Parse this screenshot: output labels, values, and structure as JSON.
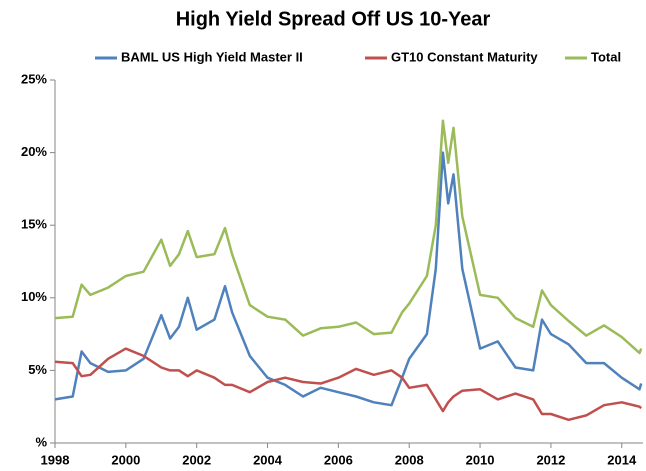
{
  "chart_data": {
    "type": "line",
    "title": "High Yield Spread Off US 10-Year",
    "x": [
      1998,
      1998.5,
      1998.75,
      1999,
      1999.5,
      2000,
      2000.5,
      2001,
      2001.25,
      2001.5,
      2001.75,
      2002,
      2002.5,
      2002.8,
      2003,
      2003.5,
      2004,
      2004.5,
      2005,
      2005.5,
      2006,
      2006.5,
      2007,
      2007.5,
      2007.8,
      2008,
      2008.5,
      2008.75,
      2008.95,
      2009.1,
      2009.25,
      2009.5,
      2010,
      2010.5,
      2011,
      2011.5,
      2011.75,
      2012,
      2012.5,
      2013,
      2013.5,
      2014,
      2014.5,
      2014.55
    ],
    "series": [
      {
        "name": "BAML US High Yield Master II",
        "color": "#4f81bd",
        "values": [
          3.0,
          3.2,
          6.3,
          5.5,
          4.9,
          5.0,
          5.8,
          8.8,
          7.2,
          8.0,
          10.0,
          7.8,
          8.5,
          10.8,
          9.0,
          6.0,
          4.5,
          4.0,
          3.2,
          3.8,
          3.5,
          3.2,
          2.8,
          2.6,
          4.5,
          5.8,
          7.5,
          12.0,
          20.0,
          16.5,
          18.5,
          12.0,
          6.5,
          7.0,
          5.2,
          5.0,
          8.5,
          7.5,
          6.8,
          5.5,
          5.5,
          4.5,
          3.7,
          4.1
        ]
      },
      {
        "name": "GT10 Constant Maturity",
        "color": "#c0504d",
        "values": [
          5.6,
          5.5,
          4.6,
          4.7,
          5.8,
          6.5,
          6.0,
          5.2,
          5.0,
          5.0,
          4.6,
          5.0,
          4.5,
          4.0,
          4.0,
          3.5,
          4.2,
          4.5,
          4.2,
          4.1,
          4.5,
          5.1,
          4.7,
          5.0,
          4.5,
          3.8,
          4.0,
          3.0,
          2.2,
          2.8,
          3.2,
          3.6,
          3.7,
          3.0,
          3.4,
          3.0,
          2.0,
          2.0,
          1.6,
          1.9,
          2.6,
          2.8,
          2.5,
          2.4
        ]
      },
      {
        "name": "Total",
        "color": "#9bbb59",
        "values": [
          8.6,
          8.7,
          10.9,
          10.2,
          10.7,
          11.5,
          11.8,
          14.0,
          12.2,
          13.0,
          14.6,
          12.8,
          13.0,
          14.8,
          13.0,
          9.5,
          8.7,
          8.5,
          7.4,
          7.9,
          8.0,
          8.3,
          7.5,
          7.6,
          9.0,
          9.6,
          11.5,
          15.0,
          22.2,
          19.3,
          21.7,
          15.6,
          10.2,
          10.0,
          8.6,
          8.0,
          10.5,
          9.5,
          8.4,
          7.4,
          8.1,
          7.3,
          6.2,
          6.5
        ]
      }
    ],
    "xlim": [
      1998,
      2014.6
    ],
    "xticks": [
      1998,
      2000,
      2002,
      2004,
      2006,
      2008,
      2010,
      2012,
      2014
    ],
    "ylim": [
      0,
      25
    ],
    "yticks": [
      {
        "value": 0,
        "label": "%"
      },
      {
        "value": 5,
        "label": "5%"
      },
      {
        "value": 10,
        "label": "10%"
      },
      {
        "value": 15,
        "label": "15%"
      },
      {
        "value": 20,
        "label": "20%"
      },
      {
        "value": 25,
        "label": "25%"
      }
    ],
    "grid": false,
    "legend": "top"
  }
}
